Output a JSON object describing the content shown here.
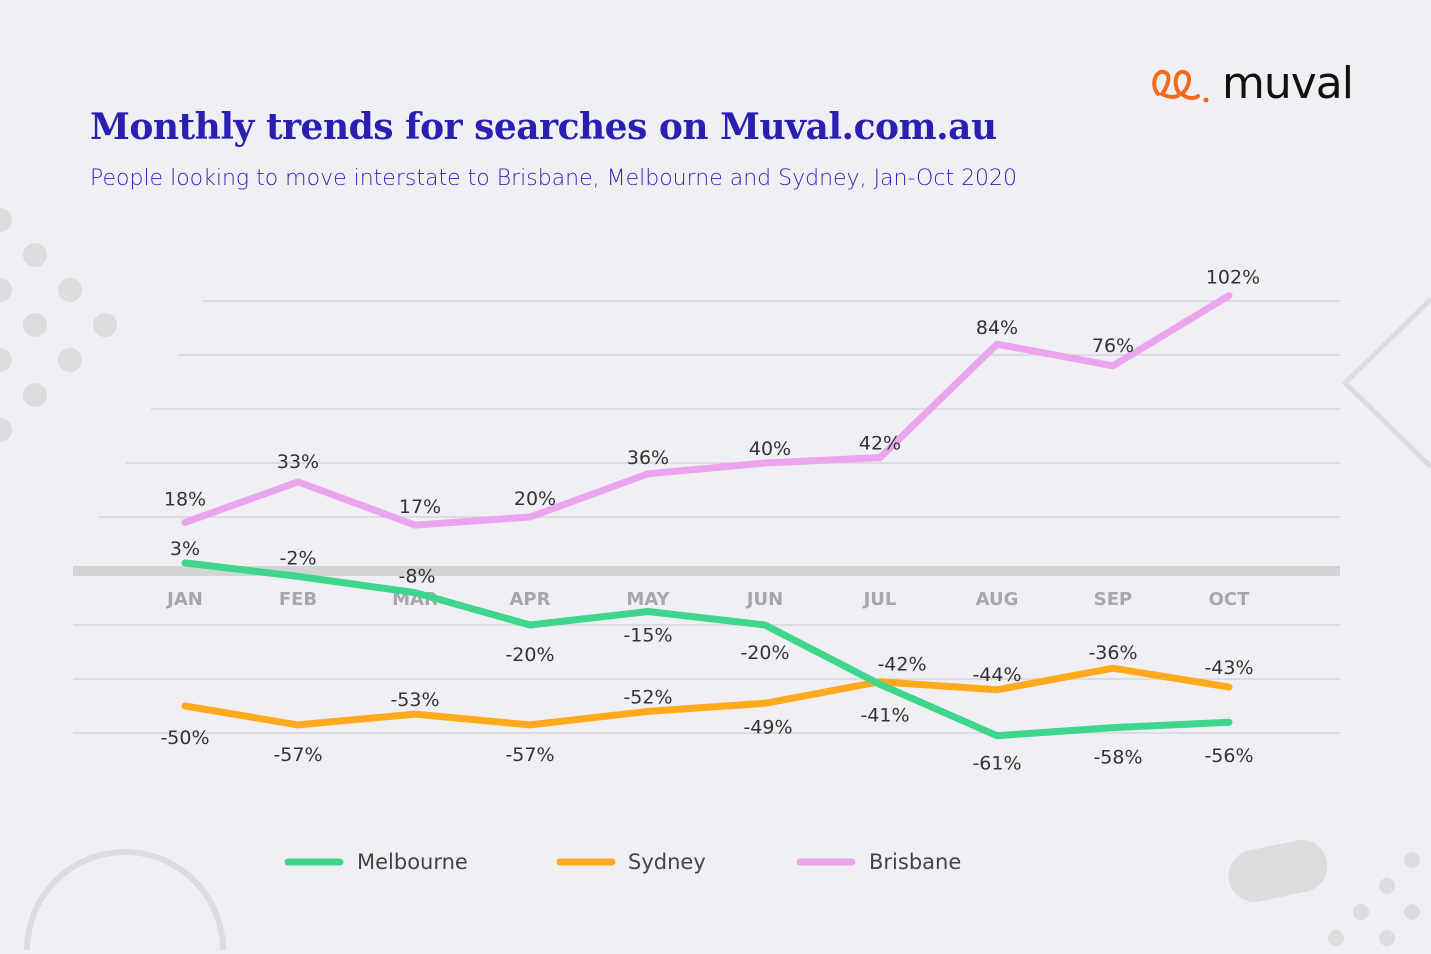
{
  "brand": {
    "name": "muval",
    "accent": "#f26a1b"
  },
  "chart_data": {
    "type": "line",
    "title": "Monthly trends for searches on Muval.com.au",
    "subtitle": "People looking to move interstate to Brisbane, Melbourne and Sydney, Jan-Oct 2020",
    "categories": [
      "JAN",
      "FEB",
      "MAR",
      "APR",
      "MAY",
      "JUN",
      "JUL",
      "AUG",
      "SEP",
      "OCT"
    ],
    "ylim": [
      -60,
      100
    ],
    "grid": true,
    "legend_position": "bottom",
    "series": [
      {
        "name": "Melbourne",
        "color": "#3dd68c",
        "values": [
          3,
          -2,
          -8,
          -20,
          -15,
          -20,
          -42,
          -61,
          -58,
          -56
        ],
        "labels": [
          "3%",
          "-2%",
          "-8%",
          "-20%",
          "-15%",
          "-20%",
          "-42%",
          "-61%",
          "-58%",
          "-56%"
        ]
      },
      {
        "name": "Sydney",
        "color": "#ffa91c",
        "values": [
          -50,
          -57,
          -53,
          -57,
          -52,
          -49,
          -41,
          -44,
          -36,
          -43
        ],
        "labels": [
          "-50%",
          "-57%",
          "-53%",
          "-57%",
          "-52%",
          "-49%",
          "-41%",
          "-44%",
          "-36%",
          "-43%"
        ]
      },
      {
        "name": "Brisbane",
        "color": "#eba4ee",
        "values": [
          18,
          33,
          17,
          20,
          36,
          40,
          42,
          84,
          76,
          102
        ],
        "labels": [
          "18%",
          "33%",
          "17%",
          "20%",
          "36%",
          "40%",
          "42%",
          "84%",
          "76%",
          "102%"
        ]
      }
    ]
  }
}
